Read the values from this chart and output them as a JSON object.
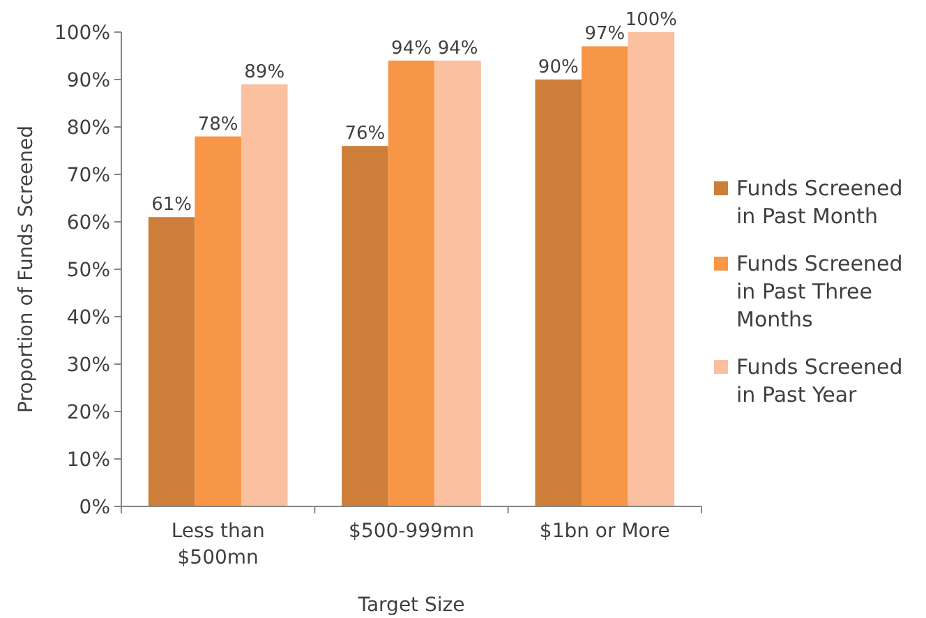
{
  "chart_data": {
    "type": "bar",
    "xlabel": "Target Size",
    "ylabel": "Proportion of Funds Screened",
    "categories": [
      "Less than $500mn",
      "$500-999mn",
      "$1bn or More"
    ],
    "series": [
      {
        "name": "Funds Screened in Past Month",
        "color": "#cd7f3a",
        "values": [
          61,
          76,
          90
        ],
        "value_labels": [
          "61%",
          "76%",
          "90%"
        ]
      },
      {
        "name": "Funds Screened in Past Three Months",
        "color": "#f79646",
        "values": [
          78,
          94,
          97
        ],
        "value_labels": [
          "78%",
          "94%",
          "97%"
        ]
      },
      {
        "name": "Funds Screened in Past Year",
        "color": "#fac0a0",
        "values": [
          89,
          94,
          100
        ],
        "value_labels": [
          "89%",
          "94%",
          "100%"
        ]
      }
    ],
    "ylim": [
      0,
      100
    ],
    "yticks": [
      {
        "value": 0,
        "label": "0%"
      },
      {
        "value": 10,
        "label": "10%"
      },
      {
        "value": 20,
        "label": "20%"
      },
      {
        "value": 30,
        "label": "30%"
      },
      {
        "value": 40,
        "label": "40%"
      },
      {
        "value": 50,
        "label": "50%"
      },
      {
        "value": 60,
        "label": "60%"
      },
      {
        "value": 70,
        "label": "70%"
      },
      {
        "value": 80,
        "label": "80%"
      },
      {
        "value": 90,
        "label": "90%"
      },
      {
        "value": 100,
        "label": "100%"
      }
    ],
    "legend": "right",
    "grid": false
  }
}
